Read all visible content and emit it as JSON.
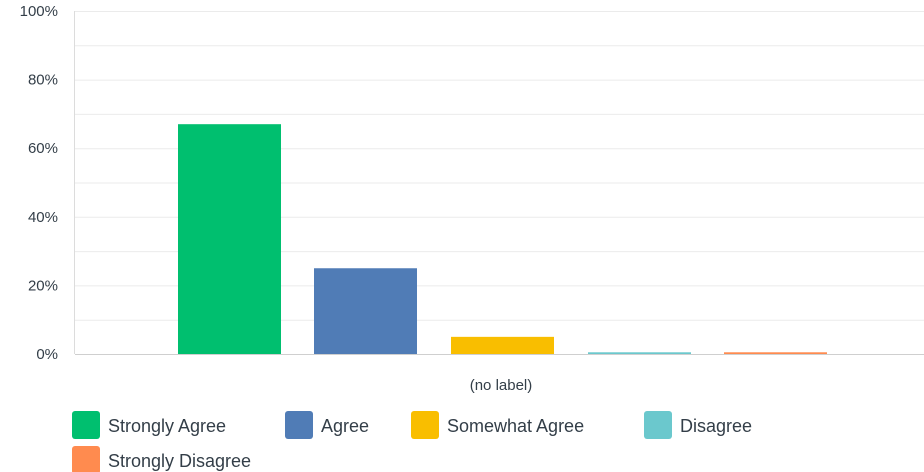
{
  "chart_data": {
    "type": "bar",
    "categories": [
      "(no label)"
    ],
    "series": [
      {
        "name": "Strongly Agree",
        "color": "#00bf6f",
        "values": [
          67
        ]
      },
      {
        "name": "Agree",
        "color": "#507cb6",
        "values": [
          25
        ]
      },
      {
        "name": "Somewhat Agree",
        "color": "#f9be00",
        "values": [
          5
        ]
      },
      {
        "name": "Disagree",
        "color": "#6bc8cd",
        "values": [
          0.5
        ]
      },
      {
        "name": "Strongly Disagree",
        "color": "#ff8b4f",
        "values": [
          0.5
        ]
      }
    ],
    "title": "",
    "xlabel": "",
    "ylabel": "",
    "ylim": [
      0,
      100
    ],
    "yticks": [
      0,
      20,
      40,
      60,
      80,
      100
    ],
    "ytick_format": "percent",
    "grid": true,
    "legend_position": "bottom-left"
  }
}
